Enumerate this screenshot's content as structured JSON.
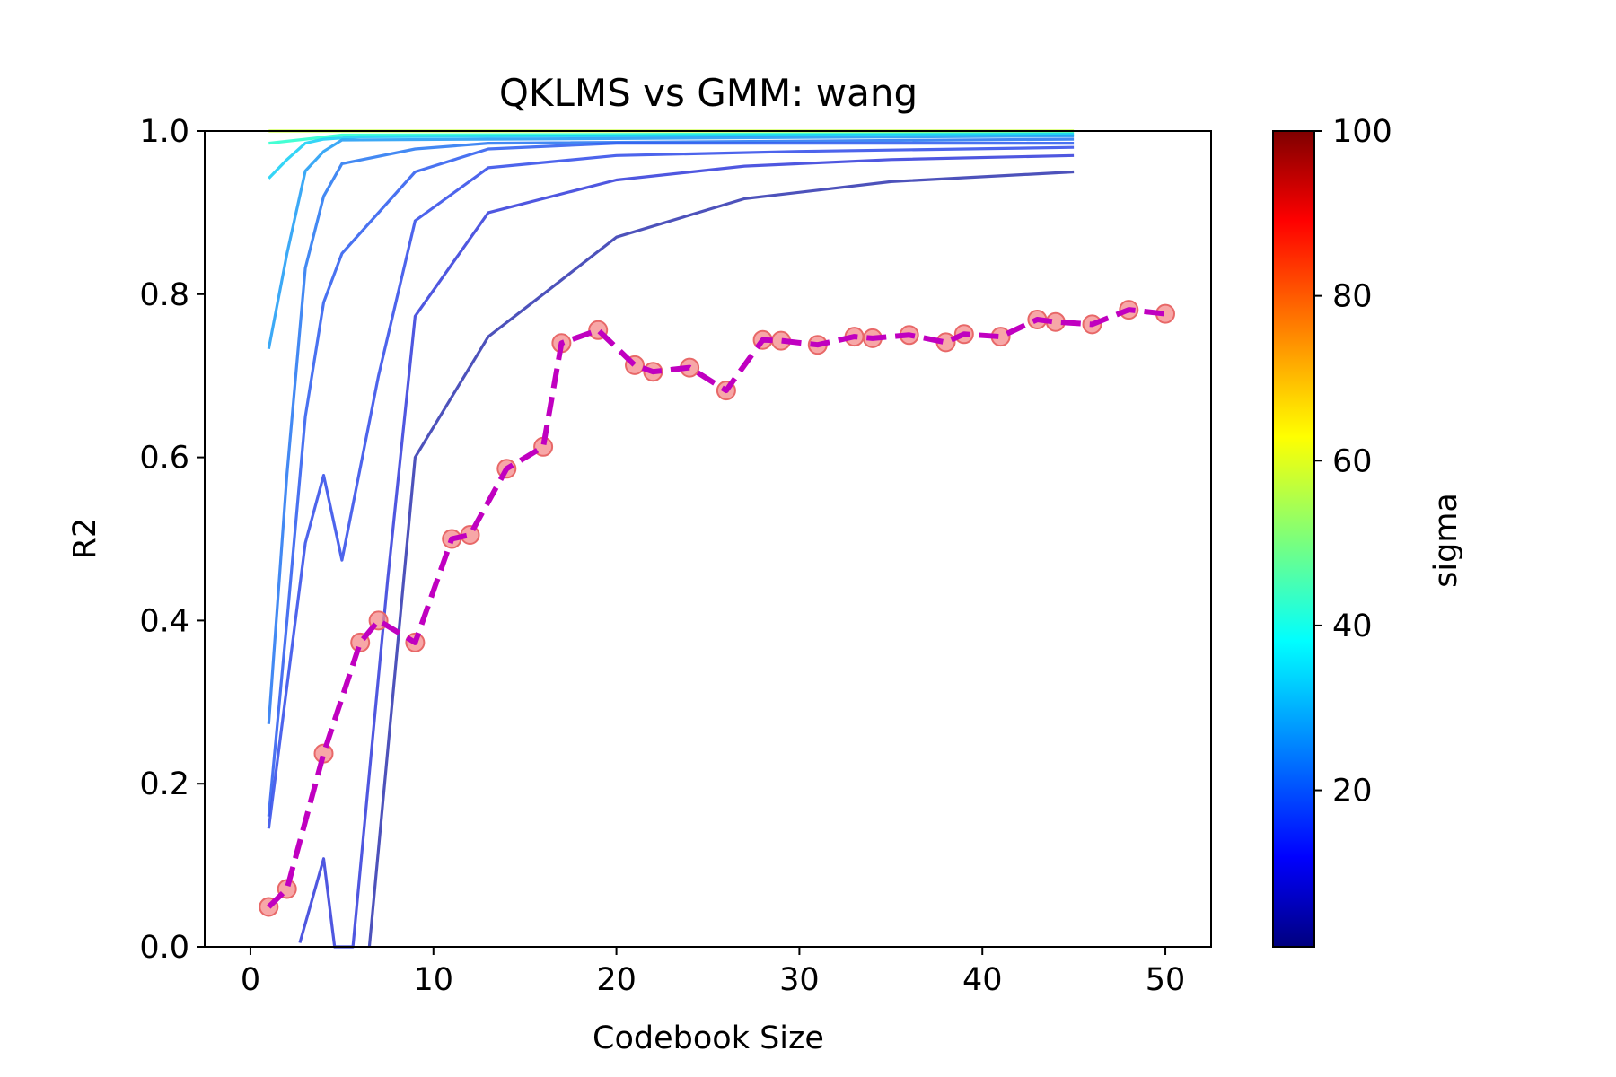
{
  "chart_data": {
    "type": "line",
    "title": "QKLMS vs GMM: wang",
    "xlabel": "Codebook Size",
    "ylabel": "R2",
    "xlim": [
      -2.5,
      52.5
    ],
    "ylim": [
      0,
      1.0
    ],
    "xticks": [
      "0",
      "10",
      "20",
      "30",
      "40",
      "50"
    ],
    "yticks": [
      "0.0",
      "0.2",
      "0.4",
      "0.6",
      "0.8",
      "1.0"
    ],
    "grid": false,
    "colorbar": {
      "label": "sigma",
      "range": [
        1,
        100
      ],
      "ticks": [
        "20",
        "40",
        "60",
        "80",
        "100"
      ],
      "colormap": "jet"
    },
    "qklms_curves": [
      {
        "sigma": 62,
        "color": "#c8ff2e",
        "points": [
          [
            1,
            1.0
          ],
          [
            45,
            1.0
          ]
        ]
      },
      {
        "sigma": 42,
        "color": "#30ffcf",
        "points": [
          [
            1,
            0.985
          ],
          [
            3,
            0.99
          ],
          [
            5,
            0.995
          ],
          [
            45,
            0.997
          ]
        ]
      },
      {
        "sigma": 34,
        "color": "#1ed0f5",
        "points": [
          [
            1,
            0.942
          ],
          [
            2,
            0.965
          ],
          [
            3,
            0.985
          ],
          [
            4,
            0.99
          ],
          [
            6,
            0.993
          ],
          [
            45,
            0.996
          ]
        ]
      },
      {
        "sigma": 30,
        "color": "#27a0f5",
        "points": [
          [
            1,
            0.733
          ],
          [
            2,
            0.85
          ],
          [
            3,
            0.951
          ],
          [
            4,
            0.975
          ],
          [
            5,
            0.989
          ],
          [
            13,
            0.99
          ],
          [
            45,
            0.994
          ]
        ]
      },
      {
        "sigma": 26,
        "color": "#2f7cf2",
        "points": [
          [
            1,
            0.273
          ],
          [
            2,
            0.58
          ],
          [
            3,
            0.832
          ],
          [
            4,
            0.92
          ],
          [
            5,
            0.96
          ],
          [
            9,
            0.978
          ],
          [
            13,
            0.985
          ],
          [
            45,
            0.99
          ]
        ]
      },
      {
        "sigma": 22,
        "color": "#3563ef",
        "points": [
          [
            1,
            0.16
          ],
          [
            2,
            0.4
          ],
          [
            3,
            0.65
          ],
          [
            4,
            0.79
          ],
          [
            5,
            0.85
          ],
          [
            9,
            0.95
          ],
          [
            13,
            0.978
          ],
          [
            20,
            0.985
          ],
          [
            45,
            0.985
          ]
        ]
      },
      {
        "sigma": 20,
        "color": "#3a53ea",
        "points": [
          [
            1,
            0.145
          ],
          [
            3,
            0.495
          ],
          [
            4,
            0.578
          ],
          [
            5,
            0.474
          ],
          [
            7,
            0.7
          ],
          [
            9,
            0.89
          ],
          [
            13,
            0.955
          ],
          [
            20,
            0.97
          ],
          [
            30,
            0.975
          ],
          [
            45,
            0.98
          ]
        ]
      },
      {
        "sigma": 18,
        "color": "#3c45dd",
        "points": [
          [
            2.7,
            0.005
          ],
          [
            4,
            0.108
          ],
          [
            4.6,
            0.0
          ],
          [
            5.6,
            0.0
          ],
          [
            7.5,
            0.45
          ],
          [
            9,
            0.773
          ],
          [
            13,
            0.9
          ],
          [
            20,
            0.94
          ],
          [
            27,
            0.957
          ],
          [
            35,
            0.965
          ],
          [
            45,
            0.97
          ]
        ]
      },
      {
        "sigma": 16,
        "color": "#3a3fb4",
        "points": [
          [
            6.5,
            0.0
          ],
          [
            9,
            0.6
          ],
          [
            13,
            0.748
          ],
          [
            16,
            0.8
          ],
          [
            20,
            0.87
          ],
          [
            27,
            0.917
          ],
          [
            35,
            0.938
          ],
          [
            45,
            0.95
          ]
        ]
      }
    ],
    "series": [
      {
        "name": "GMM",
        "style": "dashed",
        "line_color": "#c000c0",
        "marker_color": "#f48a8a",
        "x": [
          1,
          2,
          4,
          6,
          7,
          9,
          11,
          12,
          14,
          16,
          17,
          19,
          21,
          22,
          24,
          26,
          28,
          29,
          31,
          33,
          34,
          36,
          38,
          39,
          41,
          43,
          44,
          46,
          48,
          50
        ],
        "y": [
          0.049,
          0.071,
          0.237,
          0.373,
          0.4,
          0.373,
          0.5,
          0.505,
          0.586,
          0.613,
          0.74,
          0.756,
          0.713,
          0.705,
          0.71,
          0.682,
          0.744,
          0.743,
          0.738,
          0.748,
          0.746,
          0.75,
          0.741,
          0.751,
          0.748,
          0.769,
          0.766,
          0.763,
          0.781,
          0.776
        ]
      }
    ]
  }
}
